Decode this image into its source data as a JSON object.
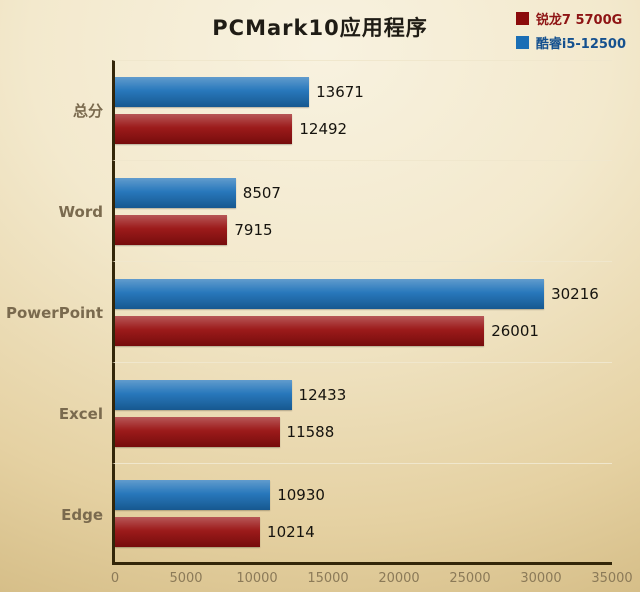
{
  "title": "PCMark10应用程序",
  "legend": {
    "items": [
      {
        "label": "锐龙7 5700G",
        "color": "#8b0b0b",
        "text_color": "#8e1414"
      },
      {
        "label": "酷睿i5-12500",
        "color": "#1b6fb5",
        "text_color": "#15518f"
      }
    ]
  },
  "chart_data": {
    "type": "bar",
    "orientation": "horizontal",
    "title": "PCMark10应用程序",
    "categories": [
      "总分",
      "Word",
      "PowerPoint",
      "Excel",
      "Edge"
    ],
    "series": [
      {
        "name": "酷睿i5-12500",
        "color": "#1d71b8",
        "values": [
          13671,
          8507,
          30216,
          12433,
          10930
        ]
      },
      {
        "name": "锐龙7 5700G",
        "color": "#970f0f",
        "values": [
          12492,
          7915,
          26001,
          11588,
          10214
        ]
      }
    ],
    "xlim": [
      0,
      35000
    ],
    "xticks": [
      0,
      5000,
      10000,
      15000,
      20000,
      25000,
      30000,
      35000
    ],
    "legend_position": "top-right",
    "grid": "horizontal-group-separators"
  }
}
